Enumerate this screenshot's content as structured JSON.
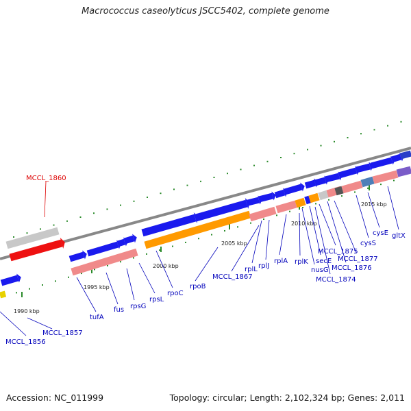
{
  "title": "Macrococcus caseolyticus JSCC5402, complete genome",
  "footer": {
    "accession": "Accession: NC_011999",
    "summary": "Topology: circular; Length: 2,102,324 bp; Genes: 2,011"
  },
  "colors": {
    "backbone": "#888888",
    "gene_blue": "#1a1aee",
    "gene_red": "#ee1111",
    "gene_gray": "#c8c8c8",
    "rna_orange": "#ff9a00",
    "pink": "#f08a8a",
    "label_blue": "#0000bb",
    "label_red": "#dd0000",
    "tick_green": "#2a8a2a"
  },
  "ticks": [
    "1990 kbp",
    "1995 kbp",
    "2000 kbp",
    "2005 kbp",
    "2010 kbp",
    "2015 kbp"
  ],
  "gene_labels": [
    {
      "text": "MCCL_1860",
      "highlight": true
    },
    {
      "text": "MCCL_1856"
    },
    {
      "text": "MCCL_1857"
    },
    {
      "text": "tufA"
    },
    {
      "text": "fus"
    },
    {
      "text": "rpsG"
    },
    {
      "text": "rpsL"
    },
    {
      "text": "rpoC"
    },
    {
      "text": "rpoB"
    },
    {
      "text": "MCCL_1867"
    },
    {
      "text": "rplL"
    },
    {
      "text": "rplJ"
    },
    {
      "text": "rplA"
    },
    {
      "text": "rplK"
    },
    {
      "text": "nusG"
    },
    {
      "text": "secE"
    },
    {
      "text": "MCCL_1874"
    },
    {
      "text": "MCCL_1875"
    },
    {
      "text": "MCCL_1876"
    },
    {
      "text": "MCCL_1877"
    },
    {
      "text": "cysS"
    },
    {
      "text": "cysE"
    },
    {
      "text": "gltX"
    }
  ]
}
